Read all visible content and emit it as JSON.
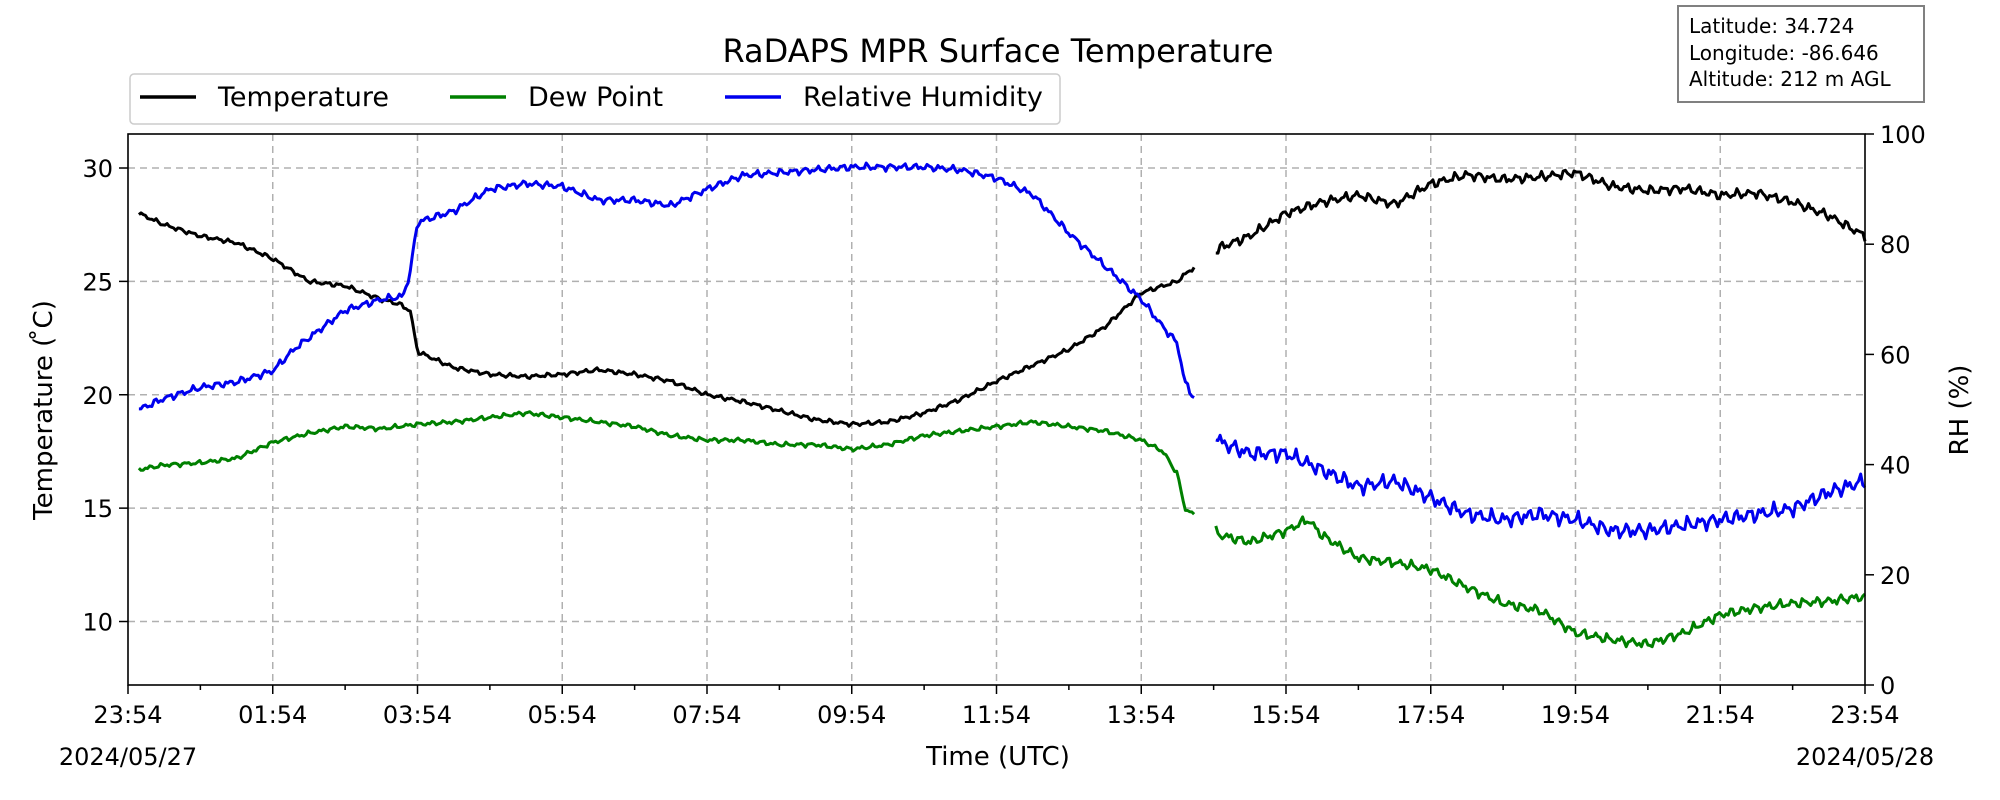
{
  "chart_data": {
    "type": "line",
    "title": "RaDAPS MPR Surface Temperature",
    "xlabel": "Time (UTC)",
    "ylabel": "Temperature ($^\\circ$C)",
    "ylabel_display": "Temperature ( ̊C)",
    "y2label": "RH (%)",
    "ylim": [
      7.2,
      31.5
    ],
    "y2lim": [
      0,
      100
    ],
    "xlim": [
      0,
      24
    ],
    "x_ticks": [
      "23:54",
      "01:54",
      "03:54",
      "05:54",
      "07:54",
      "09:54",
      "11:54",
      "13:54",
      "15:54",
      "17:54",
      "19:54",
      "21:54",
      "23:54"
    ],
    "y_ticks": [
      "10",
      "15",
      "20",
      "25",
      "30"
    ],
    "y2_ticks": [
      "0",
      "20",
      "40",
      "60",
      "80",
      "100"
    ],
    "date_start": "2024/05/27",
    "date_end": "2024/05/28",
    "grid": true,
    "legend_position": "top-left",
    "data_gap": [
      14.75,
      15.0
    ],
    "series": [
      {
        "name": "Temperature",
        "axis": "left",
        "color": "#000000",
        "x": [
          0.15,
          0.5,
          1.0,
          1.5,
          2.0,
          2.5,
          3.0,
          3.5,
          3.75,
          3.9,
          4.0,
          4.5,
          5.0,
          5.5,
          6.0,
          6.5,
          7.0,
          7.5,
          8.0,
          8.5,
          9.0,
          9.5,
          10.0,
          10.5,
          11.0,
          11.5,
          12.0,
          12.5,
          13.0,
          13.5,
          14.0,
          14.5,
          14.6,
          15.1,
          15.5,
          16.0,
          16.5,
          17.0,
          17.5,
          18.0,
          18.5,
          19.0,
          19.5,
          20.0,
          20.5,
          21.0,
          21.5,
          22.0,
          22.5,
          23.0,
          23.5,
          24.0
        ],
        "values": [
          28.0,
          27.5,
          27.0,
          26.7,
          26.0,
          25.0,
          24.8,
          24.2,
          24.0,
          23.7,
          21.9,
          21.2,
          20.9,
          20.8,
          20.9,
          21.1,
          20.9,
          20.6,
          20.0,
          19.7,
          19.3,
          18.9,
          18.7,
          18.8,
          19.2,
          19.8,
          20.6,
          21.3,
          22.0,
          23.0,
          24.5,
          25.0,
          25.3,
          26.5,
          27.0,
          28.0,
          28.5,
          28.8,
          28.4,
          29.3,
          29.7,
          29.5,
          29.6,
          29.8,
          29.2,
          29.0,
          29.1,
          28.8,
          28.9,
          28.5,
          27.9,
          27.0
        ]
      },
      {
        "name": "Dew Point",
        "axis": "left",
        "color": "#008000",
        "x": [
          0.15,
          0.5,
          1.0,
          1.5,
          2.0,
          2.5,
          3.0,
          3.5,
          4.0,
          4.5,
          5.0,
          5.5,
          6.0,
          6.5,
          7.0,
          7.5,
          8.0,
          8.5,
          9.0,
          9.5,
          10.0,
          10.5,
          11.0,
          11.5,
          12.0,
          12.5,
          13.0,
          13.5,
          14.0,
          14.3,
          14.5,
          14.6,
          15.1,
          15.5,
          16.0,
          16.3,
          16.5,
          17.0,
          17.5,
          18.0,
          18.5,
          19.0,
          19.5,
          20.0,
          20.5,
          21.0,
          21.5,
          22.0,
          22.5,
          23.0,
          23.5,
          24.0
        ],
        "values": [
          16.7,
          16.9,
          17.0,
          17.2,
          17.9,
          18.3,
          18.6,
          18.5,
          18.7,
          18.8,
          19.0,
          19.2,
          19.0,
          18.8,
          18.6,
          18.2,
          18.0,
          18.0,
          17.8,
          17.8,
          17.6,
          17.8,
          18.2,
          18.4,
          18.6,
          18.8,
          18.6,
          18.4,
          18.0,
          17.5,
          16.5,
          15.0,
          13.8,
          13.5,
          14.0,
          14.5,
          13.8,
          12.8,
          12.6,
          12.3,
          11.5,
          10.8,
          10.5,
          9.5,
          9.2,
          9.0,
          9.5,
          10.3,
          10.6,
          10.8,
          10.9,
          11.1
        ]
      },
      {
        "name": "Relative Humidity",
        "axis": "right",
        "color": "#0000ee",
        "x": [
          0.15,
          0.5,
          1.0,
          1.5,
          2.0,
          2.3,
          2.6,
          3.0,
          3.5,
          3.8,
          3.9,
          4.0,
          4.5,
          5.0,
          5.5,
          6.0,
          6.5,
          7.0,
          7.5,
          8.0,
          8.5,
          9.0,
          9.5,
          10.0,
          10.5,
          11.0,
          11.5,
          12.0,
          12.5,
          13.0,
          13.5,
          14.0,
          14.3,
          14.5,
          14.6,
          15.1,
          15.5,
          16.0,
          16.5,
          17.0,
          17.5,
          18.0,
          18.5,
          19.0,
          19.5,
          20.0,
          20.5,
          21.0,
          21.5,
          22.0,
          22.5,
          23.0,
          23.5,
          24.0
        ],
        "values": [
          50.0,
          52.0,
          54.0,
          55.0,
          57.0,
          61.0,
          64.0,
          68.0,
          70.0,
          70.5,
          75.0,
          84.0,
          86.0,
          90.0,
          91.0,
          90.5,
          88.0,
          88.0,
          87.0,
          90.0,
          92.5,
          93.0,
          93.5,
          94.0,
          94.0,
          94.0,
          93.5,
          92.0,
          89.0,
          82.0,
          76.0,
          70.0,
          65.0,
          62.0,
          55.0,
          44.0,
          42.0,
          42.0,
          39.0,
          36.0,
          37.0,
          34.0,
          31.0,
          30.0,
          31.0,
          30.0,
          28.0,
          28.0,
          29.0,
          30.0,
          31.0,
          32.0,
          35.0,
          37.0
        ]
      }
    ],
    "info_box": {
      "latitude": "Latitude: 34.724",
      "longitude": "Longitude: -86.646",
      "altitude": "Altitude: 212 m AGL"
    }
  }
}
